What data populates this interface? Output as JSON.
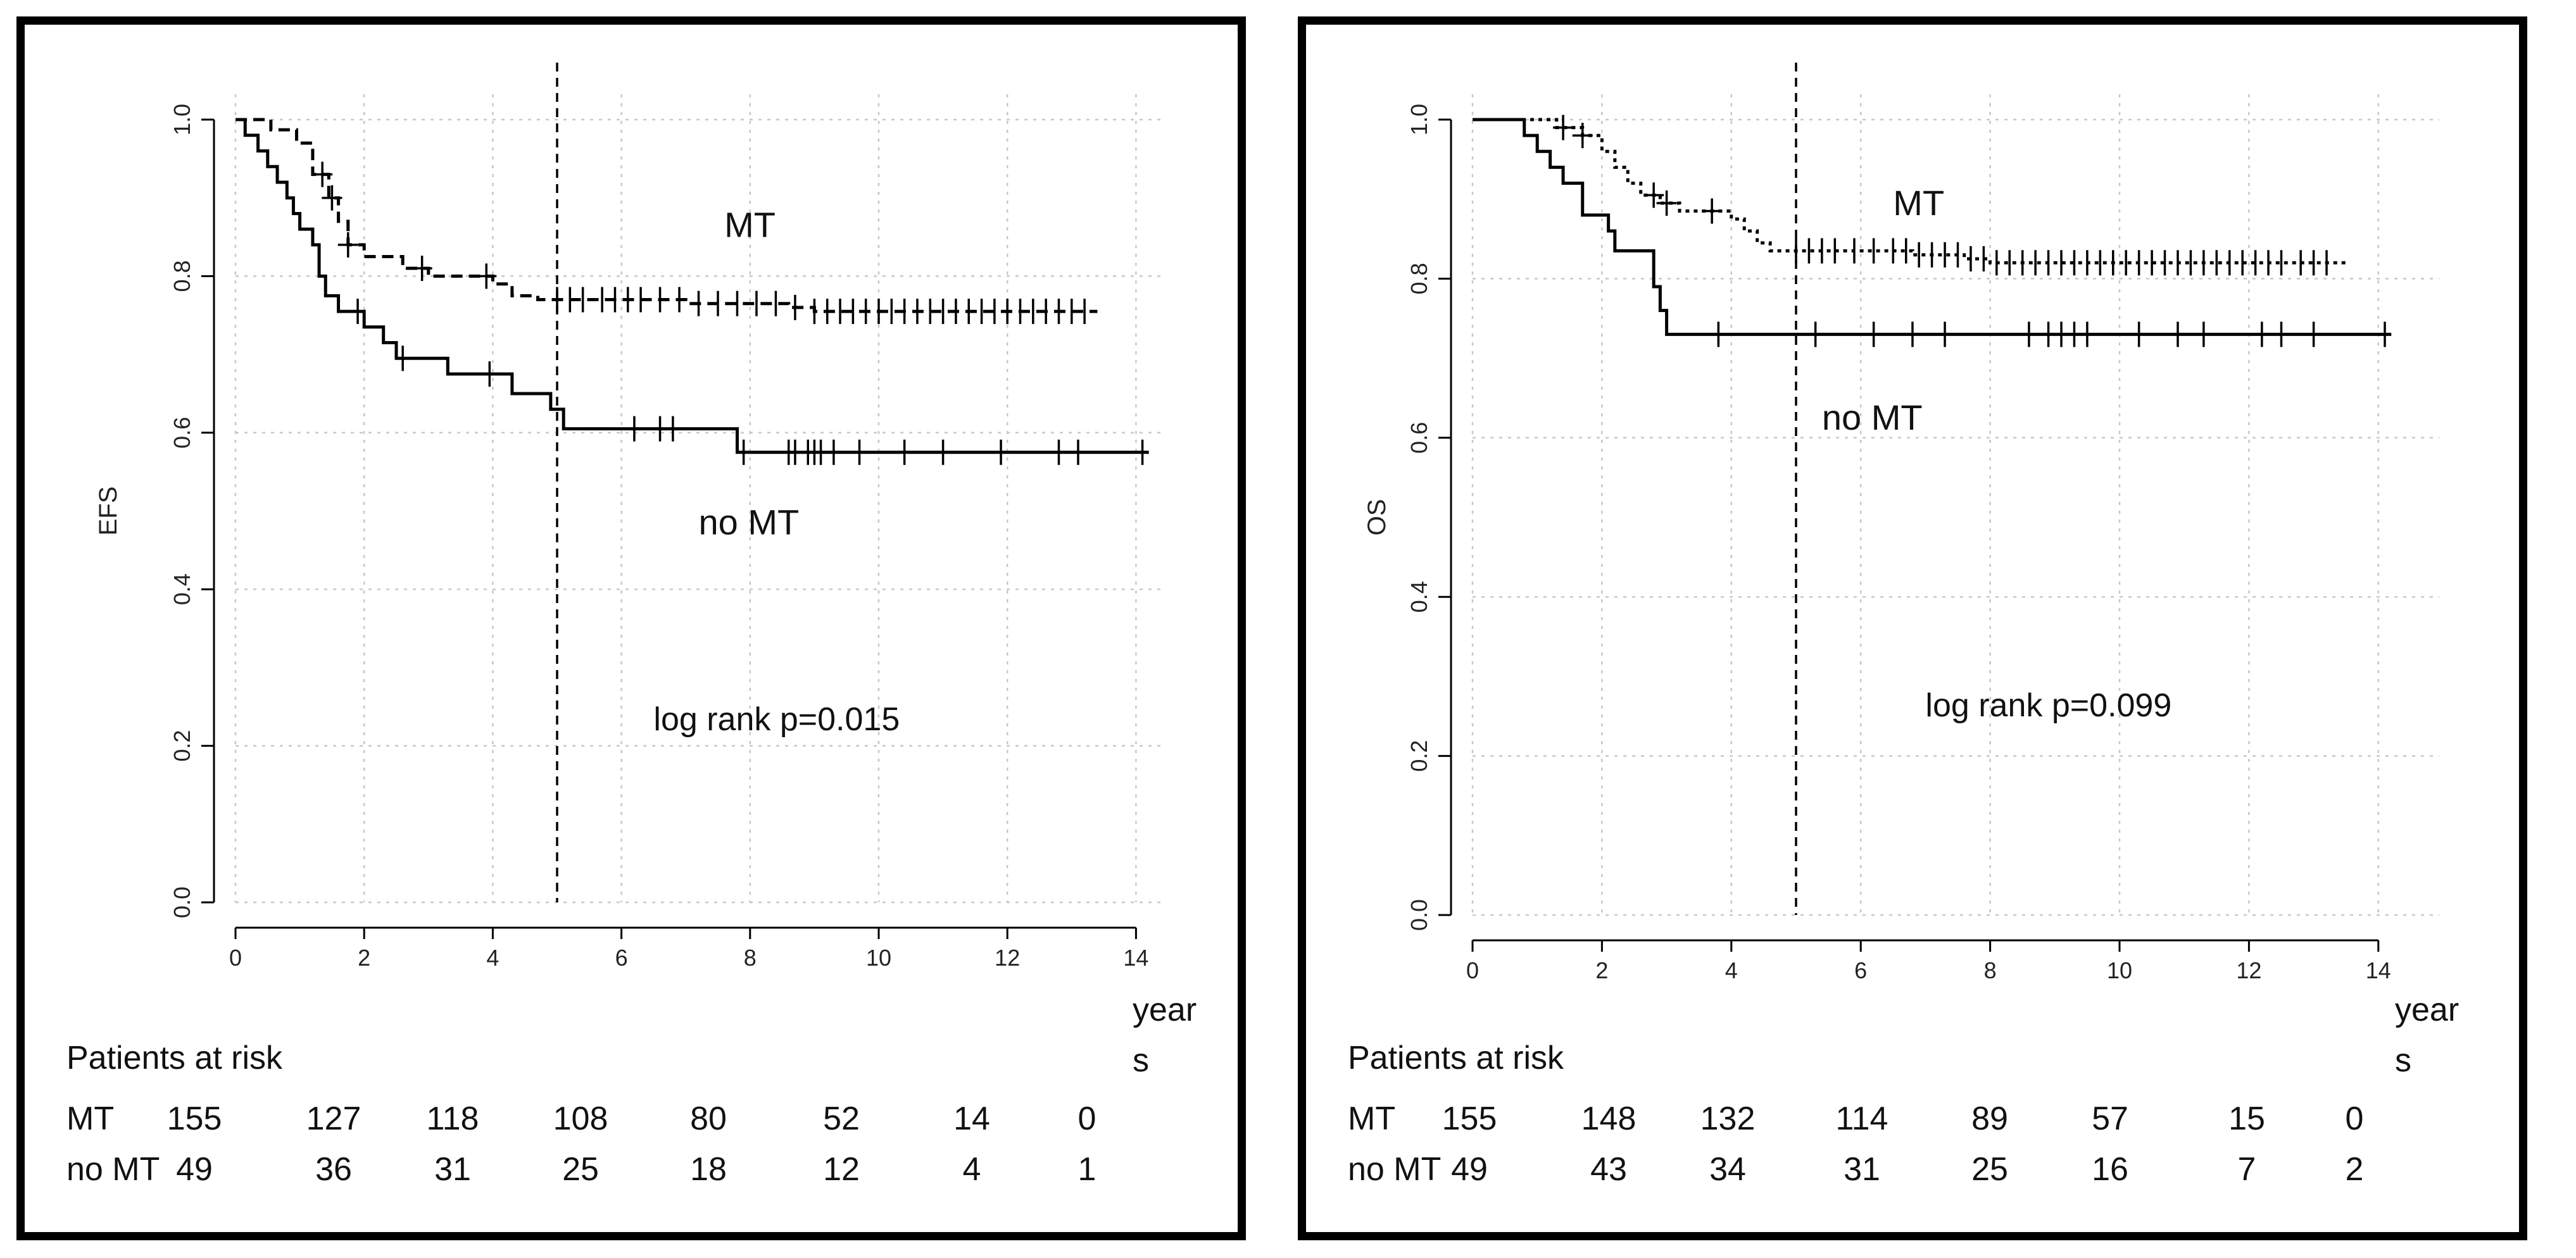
{
  "chart_data": [
    {
      "type": "line",
      "subtype": "kaplan-meier",
      "ylabel": "EFS",
      "xlabel": "years",
      "xlabel_lines": [
        "year",
        "s"
      ],
      "xlim": [
        0,
        14.6
      ],
      "ylim": [
        0,
        1.0
      ],
      "x_ticks": [
        0,
        2,
        4,
        6,
        8,
        10,
        12,
        14
      ],
      "y_ticks": [
        0.0,
        0.2,
        0.4,
        0.6,
        0.8,
        1.0
      ],
      "y_tick_labels": [
        "0.0",
        "0.2",
        "0.4",
        "0.6",
        "0.8",
        "1.0"
      ],
      "reference_line_x": 5,
      "annotations": [
        {
          "text": "MT",
          "x": 7.6,
          "y": 0.85,
          "size": "large"
        },
        {
          "text": "no MT",
          "x": 7.2,
          "y": 0.47,
          "size": "large"
        },
        {
          "text": "log rank p=0.015",
          "x": 6.5,
          "y": 0.22,
          "size": "small"
        }
      ],
      "series": [
        {
          "name": "MT",
          "line_style": "dashed",
          "steps": [
            [
              0,
              1.0
            ],
            [
              0.55,
              0.987
            ],
            [
              0.95,
              0.97
            ],
            [
              1.2,
              0.93
            ],
            [
              1.45,
              0.9
            ],
            [
              1.6,
              0.87
            ],
            [
              1.75,
              0.84
            ],
            [
              2.0,
              0.825
            ],
            [
              2.6,
              0.81
            ],
            [
              3.0,
              0.8
            ],
            [
              4.0,
              0.79
            ],
            [
              4.3,
              0.775
            ],
            [
              4.7,
              0.77
            ],
            [
              7.0,
              0.765
            ],
            [
              8.6,
              0.76
            ],
            [
              9.0,
              0.755
            ],
            [
              13.4,
              0.755
            ]
          ],
          "censor_times": [
            1.35,
            1.5,
            1.75,
            2.9,
            3.9,
            5.0,
            5.2,
            5.4,
            5.7,
            5.9,
            6.1,
            6.3,
            6.6,
            6.9,
            7.2,
            7.5,
            7.8,
            8.1,
            8.4,
            8.7,
            9.0,
            9.2,
            9.4,
            9.6,
            9.8,
            10.0,
            10.2,
            10.4,
            10.6,
            10.8,
            11.0,
            11.2,
            11.4,
            11.6,
            11.8,
            12.0,
            12.2,
            12.4,
            12.6,
            12.8,
            13.0,
            13.2
          ]
        },
        {
          "name": "no MT",
          "line_style": "solid",
          "steps": [
            [
              0,
              1.0
            ],
            [
              0.15,
              0.98
            ],
            [
              0.35,
              0.96
            ],
            [
              0.5,
              0.94
            ],
            [
              0.65,
              0.92
            ],
            [
              0.8,
              0.9
            ],
            [
              0.9,
              0.88
            ],
            [
              1.0,
              0.86
            ],
            [
              1.2,
              0.84
            ],
            [
              1.3,
              0.8
            ],
            [
              1.4,
              0.775
            ],
            [
              1.6,
              0.755
            ],
            [
              2.0,
              0.735
            ],
            [
              2.3,
              0.715
            ],
            [
              2.5,
              0.695
            ],
            [
              3.3,
              0.675
            ],
            [
              4.3,
              0.65
            ],
            [
              4.9,
              0.63
            ],
            [
              5.1,
              0.605
            ],
            [
              7.8,
              0.575
            ],
            [
              14.2,
              0.575
            ]
          ],
          "censor_times": [
            1.9,
            2.6,
            3.95,
            6.2,
            6.6,
            6.8,
            7.9,
            8.6,
            8.7,
            8.9,
            9.0,
            9.1,
            9.3,
            9.7,
            10.4,
            11.0,
            11.9,
            12.8,
            13.1,
            14.1
          ]
        }
      ],
      "risk_table": {
        "title": "Patients at risk",
        "rows": [
          {
            "label": "MT",
            "values": [
              "155",
              "127",
              "118",
              "108",
              "80",
              "52",
              "14",
              "0"
            ]
          },
          {
            "label": "no  MT",
            "values": [
              "49",
              "36",
              "31",
              "25",
              "18",
              "12",
              "4",
              "1"
            ]
          }
        ]
      }
    },
    {
      "type": "line",
      "subtype": "kaplan-meier",
      "ylabel": "OS",
      "xlabel": "years",
      "xlabel_lines": [
        "year",
        "s"
      ],
      "xlim": [
        0,
        14.6
      ],
      "ylim": [
        0,
        1.0
      ],
      "x_ticks": [
        0,
        2,
        4,
        6,
        8,
        10,
        12,
        14
      ],
      "y_ticks": [
        0.0,
        0.2,
        0.4,
        0.6,
        0.8,
        1.0
      ],
      "y_tick_labels": [
        "0.0",
        "0.2",
        "0.4",
        "0.6",
        "0.8",
        "1.0"
      ],
      "reference_line_x": 5,
      "annotations": [
        {
          "text": "MT",
          "x": 6.5,
          "y": 0.88,
          "size": "large"
        },
        {
          "text": "no  MT",
          "x": 5.4,
          "y": 0.61,
          "size": "large"
        },
        {
          "text": "log rank p=0.099",
          "x": 7.0,
          "y": 0.25,
          "size": "small"
        }
      ],
      "series": [
        {
          "name": "MT",
          "line_style": "dotted",
          "steps": [
            [
              0,
              1.0
            ],
            [
              1.3,
              0.99
            ],
            [
              1.7,
              0.98
            ],
            [
              2.0,
              0.96
            ],
            [
              2.2,
              0.94
            ],
            [
              2.4,
              0.92
            ],
            [
              2.6,
              0.905
            ],
            [
              2.9,
              0.895
            ],
            [
              3.2,
              0.885
            ],
            [
              4.0,
              0.875
            ],
            [
              4.2,
              0.86
            ],
            [
              4.4,
              0.845
            ],
            [
              4.6,
              0.835
            ],
            [
              6.8,
              0.83
            ],
            [
              7.6,
              0.825
            ],
            [
              8.0,
              0.82
            ],
            [
              13.5,
              0.82
            ]
          ],
          "censor_times": [
            1.4,
            1.7,
            2.8,
            3.0,
            3.7,
            5.0,
            5.2,
            5.4,
            5.6,
            5.9,
            6.2,
            6.5,
            6.7,
            6.9,
            7.1,
            7.3,
            7.5,
            7.7,
            7.9,
            8.1,
            8.3,
            8.5,
            8.7,
            8.9,
            9.1,
            9.3,
            9.5,
            9.7,
            9.9,
            10.1,
            10.3,
            10.5,
            10.7,
            10.9,
            11.1,
            11.3,
            11.5,
            11.7,
            11.9,
            12.1,
            12.3,
            12.5,
            12.8,
            13.0,
            13.2
          ]
        },
        {
          "name": "no MT",
          "line_style": "solid",
          "steps": [
            [
              0,
              1.0
            ],
            [
              0.8,
              0.98
            ],
            [
              1.0,
              0.96
            ],
            [
              1.2,
              0.94
            ],
            [
              1.4,
              0.92
            ],
            [
              1.7,
              0.88
            ],
            [
              2.1,
              0.86
            ],
            [
              2.2,
              0.835
            ],
            [
              2.8,
              0.79
            ],
            [
              2.9,
              0.76
            ],
            [
              3.0,
              0.73
            ],
            [
              14.2,
              0.73
            ]
          ],
          "censor_times": [
            3.8,
            5.3,
            6.2,
            6.8,
            7.3,
            8.6,
            8.9,
            9.1,
            9.3,
            9.5,
            10.3,
            10.9,
            11.3,
            12.2,
            12.5,
            13.0,
            14.1
          ]
        }
      ],
      "risk_table": {
        "title": "Patients at risk",
        "rows": [
          {
            "label": "MT",
            "values": [
              "155",
              "148",
              "132",
              "114",
              "89",
              "57",
              "15",
              "0"
            ]
          },
          {
            "label": "no  MT",
            "values": [
              "49",
              "43",
              "34",
              "31",
              "25",
              "16",
              "7",
              "2"
            ]
          }
        ]
      }
    }
  ]
}
